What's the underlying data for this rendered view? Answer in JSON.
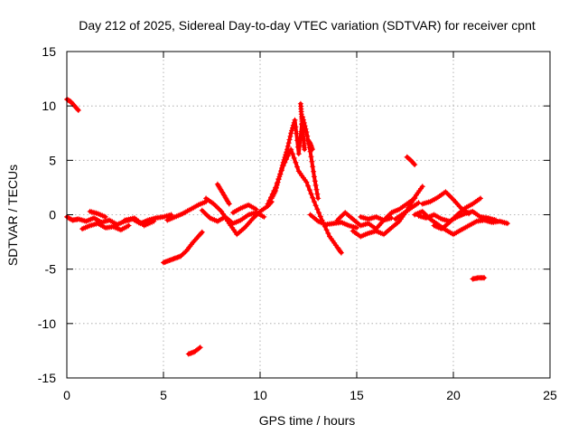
{
  "chart_data": {
    "type": "scatter",
    "title": "Day 212 of 2025, Sidereal Day-to-day VTEC variation (SDTVAR) for receiver cpnt",
    "xlabel": "GPS time / hours",
    "ylabel": "SDTVAR / TECUs",
    "xlim": [
      0,
      25
    ],
    "ylim": [
      -15,
      15
    ],
    "xticks": [
      0,
      5,
      10,
      15,
      20,
      25
    ],
    "yticks": [
      -15,
      -10,
      -5,
      0,
      5,
      10,
      15
    ],
    "grid": true,
    "marker": "+",
    "series": [
      {
        "name": "SDTVAR",
        "color": "#ff0000",
        "segments": [
          {
            "x": [
              0.0,
              0.2,
              0.4,
              0.6
            ],
            "y": [
              10.6,
              10.4,
              10.0,
              9.6
            ]
          },
          {
            "x": [
              0.0,
              0.3,
              0.6,
              1.0,
              1.4,
              1.8,
              2.2,
              2.6,
              3.0,
              3.4,
              3.8,
              4.2,
              4.6,
              5.0,
              5.4
            ],
            "y": [
              -0.2,
              -0.5,
              -0.4,
              -0.6,
              -0.3,
              -0.7,
              -0.5,
              -0.9,
              -0.6,
              -0.4,
              -0.8,
              -0.5,
              -0.3,
              -0.2,
              0.0
            ]
          },
          {
            "x": [
              0.8,
              1.2,
              1.6,
              2.0,
              2.4,
              2.8,
              3.2
            ],
            "y": [
              -1.3,
              -1.0,
              -0.8,
              -1.2,
              -1.1,
              -1.4,
              -1.0
            ]
          },
          {
            "x": [
              1.2,
              1.6,
              2.0
            ],
            "y": [
              0.3,
              0.1,
              -0.2
            ]
          },
          {
            "x": [
              3.0,
              3.5,
              4.0,
              4.5
            ],
            "y": [
              -0.5,
              -0.3,
              -1.0,
              -0.6
            ]
          },
          {
            "x": [
              5.2,
              5.6,
              6.0,
              6.4,
              6.8,
              7.2
            ],
            "y": [
              -0.5,
              -0.2,
              0.1,
              0.5,
              0.9,
              1.2
            ]
          },
          {
            "x": [
              5.0,
              5.3,
              5.6,
              5.9,
              6.2,
              6.5,
              6.8,
              7.0
            ],
            "y": [
              -4.4,
              -4.2,
              -4.0,
              -3.8,
              -3.3,
              -2.6,
              -2.0,
              -1.6
            ]
          },
          {
            "x": [
              6.3,
              6.6,
              6.9
            ],
            "y": [
              -12.8,
              -12.6,
              -12.2
            ]
          },
          {
            "x": [
              7.2,
              7.6,
              8.0,
              8.4,
              8.8,
              9.2,
              9.6,
              10.0,
              10.4,
              10.6
            ],
            "y": [
              1.5,
              1.0,
              0.3,
              -0.8,
              -1.8,
              -1.2,
              -0.4,
              0.3,
              0.8,
              1.2
            ]
          },
          {
            "x": [
              7.0,
              7.4,
              7.8,
              8.2,
              8.6,
              9.0,
              9.4,
              9.8,
              10.2
            ],
            "y": [
              0.4,
              -0.3,
              -0.6,
              -0.2,
              -0.8,
              -0.5,
              0.0,
              0.2,
              -0.2
            ]
          },
          {
            "x": [
              7.8,
              8.0,
              8.2,
              8.4
            ],
            "y": [
              2.8,
              2.2,
              1.6,
              1.0
            ]
          },
          {
            "x": [
              8.6,
              9.0,
              9.4,
              9.8
            ],
            "y": [
              0.2,
              0.6,
              0.9,
              0.5
            ]
          },
          {
            "x": [
              10.4,
              10.8,
              11.2,
              11.6,
              12.0,
              12.4,
              12.8,
              13.2,
              13.6,
              14.0,
              14.2
            ],
            "y": [
              1.0,
              2.5,
              4.5,
              6.0,
              4.0,
              3.0,
              1.2,
              -0.5,
              -2.0,
              -3.0,
              -3.5
            ]
          },
          {
            "x": [
              10.6,
              10.8,
              11.0,
              11.2,
              11.4,
              11.6,
              11.8,
              12.0,
              12.2,
              12.4,
              12.6,
              12.8,
              13.0
            ],
            "y": [
              1.5,
              2.2,
              3.5,
              4.8,
              6.0,
              7.5,
              8.7,
              5.6,
              9.0,
              7.6,
              5.8,
              3.5,
              1.5
            ]
          },
          {
            "x": [
              12.1,
              12.15,
              12.2,
              12.25,
              12.3
            ],
            "y": [
              10.2,
              9.0,
              8.0,
              7.0,
              6.0
            ]
          },
          {
            "x": [
              12.5,
              12.6,
              12.7
            ],
            "y": [
              6.8,
              6.5,
              6.0
            ]
          },
          {
            "x": [
              12.6,
              13.0,
              13.4,
              13.8,
              14.2,
              14.6,
              15.0
            ],
            "y": [
              0.0,
              -0.6,
              -0.9,
              -0.8,
              -0.7,
              -1.0,
              -1.2
            ]
          },
          {
            "x": [
              14.0,
              14.4,
              14.8,
              15.2,
              15.6,
              16.0,
              16.4,
              16.8,
              17.2,
              17.6,
              18.0
            ],
            "y": [
              -0.5,
              0.2,
              -0.4,
              -1.0,
              -0.8,
              -1.3,
              -0.5,
              0.2,
              0.5,
              1.0,
              1.5
            ]
          },
          {
            "x": [
              14.8,
              15.2,
              15.6,
              16.0,
              16.4,
              16.8,
              17.2,
              17.6,
              18.0,
              18.4
            ],
            "y": [
              -1.5,
              -2.0,
              -1.7,
              -1.5,
              -1.8,
              -1.2,
              -0.6,
              0.4,
              1.6,
              2.6
            ]
          },
          {
            "x": [
              15.2,
              15.6,
              16.0,
              16.4,
              16.8
            ],
            "y": [
              -0.2,
              -0.4,
              -0.2,
              -0.5,
              -0.3
            ]
          },
          {
            "x": [
              17.0,
              17.4,
              17.8,
              18.2
            ],
            "y": [
              -0.4,
              0.1,
              0.6,
              1.1
            ]
          },
          {
            "x": [
              17.6,
              17.8,
              18.0
            ],
            "y": [
              5.3,
              5.0,
              4.6
            ]
          },
          {
            "x": [
              18.0,
              18.4,
              18.8,
              19.2,
              19.6,
              20.0,
              20.4,
              20.8,
              21.2,
              21.6,
              22.0,
              22.4,
              22.8
            ],
            "y": [
              0.0,
              0.3,
              -0.4,
              -0.9,
              -1.4,
              -1.8,
              -1.4,
              -1.0,
              -0.6,
              -0.5,
              -0.7,
              -0.6,
              -0.8
            ]
          },
          {
            "x": [
              18.2,
              18.6,
              19.0,
              19.4,
              19.8,
              20.2,
              20.6,
              21.0,
              21.4,
              21.8,
              22.2
            ],
            "y": [
              -0.1,
              -0.3,
              0.0,
              -0.4,
              -0.6,
              -0.2,
              0.1,
              0.3,
              -0.2,
              -0.3,
              -0.5
            ]
          },
          {
            "x": [
              18.4,
              18.8,
              19.2,
              19.6,
              20.0,
              20.4,
              20.8
            ],
            "y": [
              1.0,
              1.2,
              1.6,
              2.1,
              1.4,
              0.6,
              0.1
            ]
          },
          {
            "x": [
              19.0,
              19.4,
              19.8,
              20.2,
              20.6,
              21.0,
              21.4
            ],
            "y": [
              -1.0,
              -1.3,
              -0.7,
              0.0,
              0.6,
              1.0,
              1.5
            ]
          },
          {
            "x": [
              21.0,
              21.3,
              21.6
            ],
            "y": [
              -5.9,
              -5.8,
              -5.8
            ]
          }
        ]
      }
    ]
  }
}
